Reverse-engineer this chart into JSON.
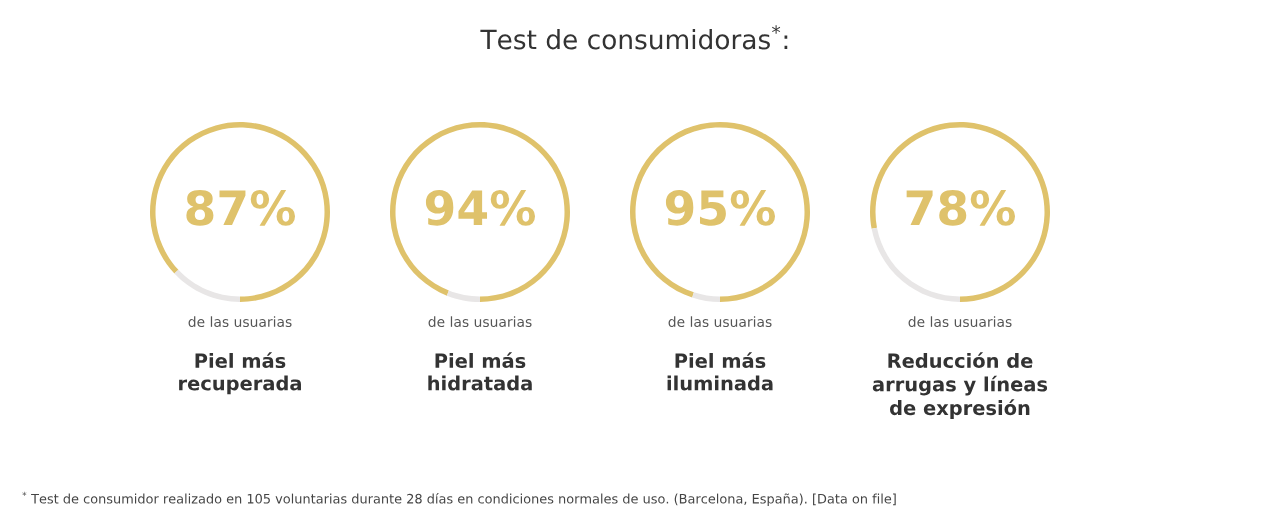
{
  "chart_data": [
    {
      "type": "other",
      "title": "Test de consumidoras$^{*}$:",
      "annotations": [
        "$^{*}$ Test de consumidor realizado en 105 voluntarias durante 28 días en condiciones normales de uso. (Barcelona, España). [Data on file]"
      ]
    },
    {
      "type": "donut",
      "title": "Piel más recuperada",
      "categories": [
        null,
        null
      ],
      "values": [
        87,
        13
      ],
      "colors": [
        "#dfc26b",
        "#e8e6e6"
      ],
      "value_labels": [
        "87%",
        null
      ],
      "annotations": [
        "de las usuarias"
      ]
    },
    {
      "type": "donut",
      "title": "Piel más hidratada",
      "categories": [
        null,
        null
      ],
      "values": [
        94,
        6
      ],
      "colors": [
        "#dfc26b",
        "#e8e6e6"
      ],
      "value_labels": [
        "94%",
        null
      ],
      "annotations": [
        "de las usuarias"
      ]
    },
    {
      "type": "donut",
      "title": "Piel más iluminada",
      "categories": [
        null,
        null
      ],
      "values": [
        95,
        5
      ],
      "colors": [
        "#dfc26b",
        "#e8e6e6"
      ],
      "value_labels": [
        "95%",
        null
      ],
      "annotations": [
        "de las usuarias"
      ]
    },
    {
      "type": "donut",
      "title": "Reducción de arrugas y líneas de expresión",
      "categories": [
        null,
        null
      ],
      "values": [
        78,
        22
      ],
      "colors": [
        "#dfc26b",
        "#e8e6e6"
      ],
      "value_labels": [
        "78%",
        null
      ],
      "annotations": [
        "de las usuarias"
      ]
    }
  ]
}
